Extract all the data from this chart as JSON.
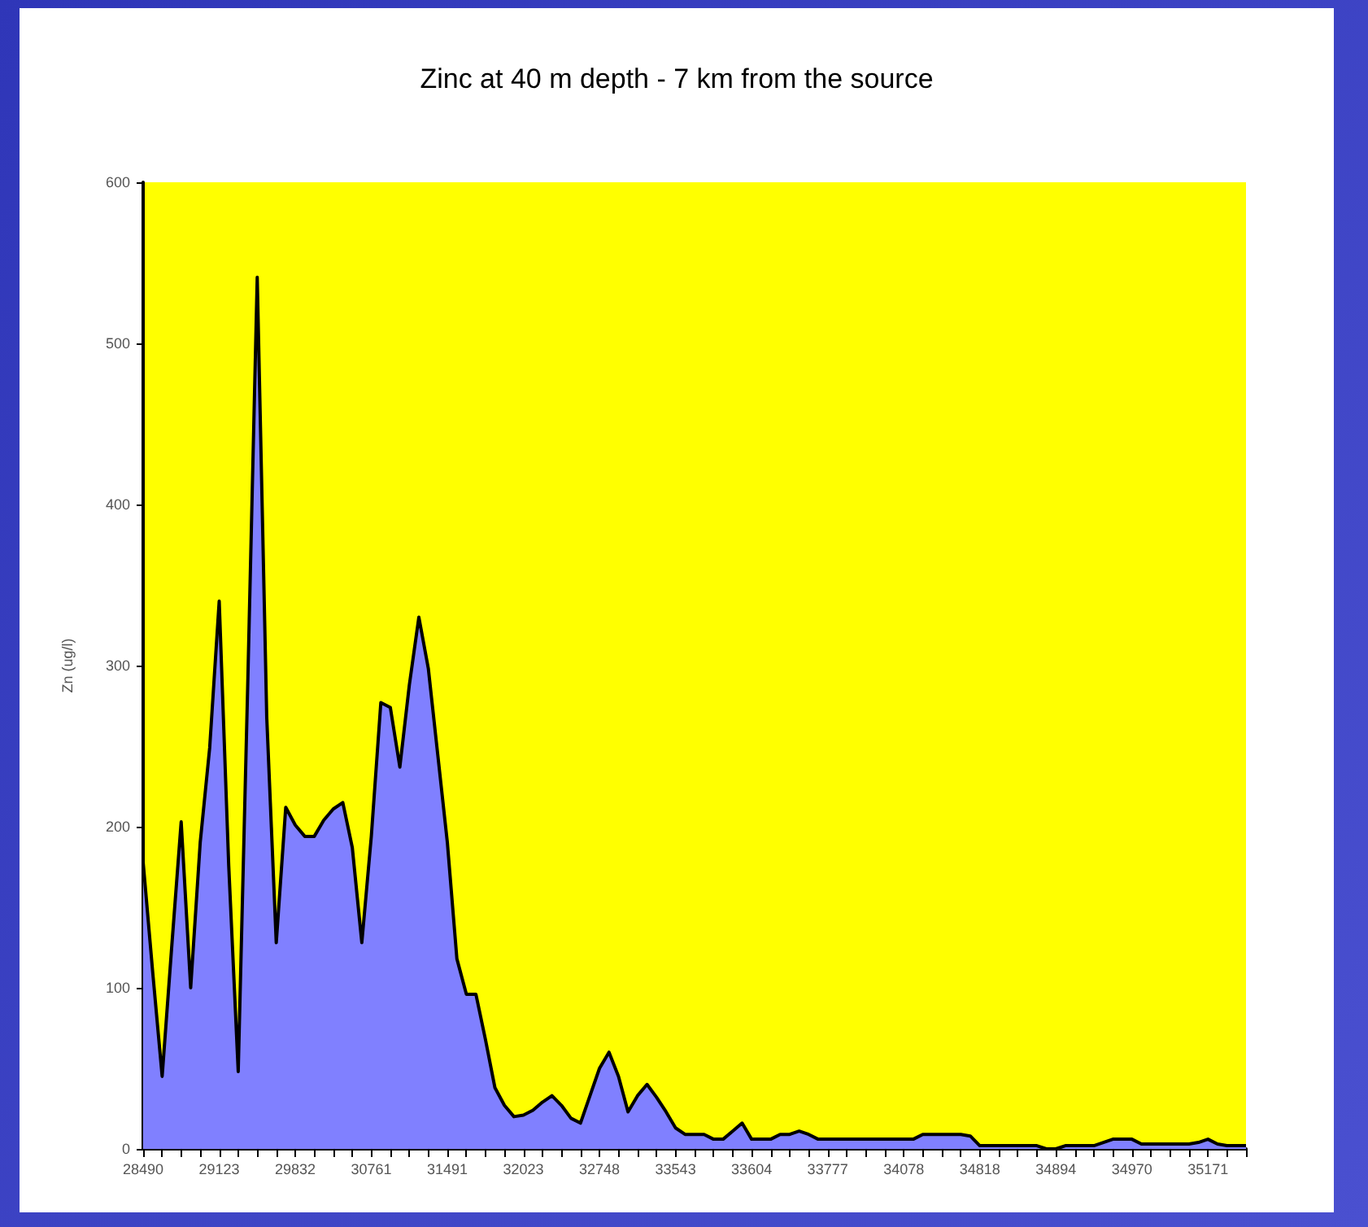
{
  "chart_data": {
    "type": "area",
    "title": "Zinc at 40 m depth - 7 km from the source",
    "ylabel": "Zn (ug/l)",
    "categories": [
      "28490",
      null,
      null,
      null,
      null,
      null,
      null,
      null,
      "29123",
      null,
      null,
      null,
      null,
      null,
      null,
      null,
      "29832",
      null,
      null,
      null,
      null,
      null,
      null,
      null,
      "30761",
      null,
      null,
      null,
      null,
      null,
      null,
      null,
      "31491",
      null,
      null,
      null,
      null,
      null,
      null,
      null,
      "32023",
      null,
      null,
      null,
      null,
      null,
      null,
      null,
      "32748",
      null,
      null,
      null,
      null,
      null,
      null,
      null,
      "33543",
      null,
      null,
      null,
      null,
      null,
      null,
      null,
      "33604",
      null,
      null,
      null,
      null,
      null,
      null,
      null,
      "33777",
      null,
      null,
      null,
      null,
      null,
      null,
      null,
      "34078",
      null,
      null,
      null,
      null,
      null,
      null,
      null,
      "34818",
      null,
      null,
      null,
      null,
      null,
      null,
      null,
      "34894",
      null,
      null,
      null,
      null,
      null,
      null,
      null,
      "34970",
      null,
      null,
      null,
      null,
      null,
      null,
      null,
      "35171",
      null,
      null,
      null,
      null
    ],
    "series": [
      {
        "color": "#8080ff",
        "values": [
          178,
          110,
          45,
          125,
          203,
          100,
          190,
          249,
          340,
          176,
          48,
          288,
          541,
          268,
          128,
          212,
          201,
          194,
          194,
          204,
          211,
          215,
          187,
          128,
          194,
          277,
          274,
          237,
          288,
          330,
          298,
          244,
          190,
          118,
          96,
          96,
          68,
          38,
          27,
          20,
          21,
          24,
          29,
          33,
          27,
          19,
          16,
          33,
          50,
          60,
          45,
          23,
          33,
          40,
          32,
          23,
          13,
          9,
          9,
          9,
          6,
          6,
          11,
          16,
          6,
          6,
          6,
          9,
          9,
          11,
          9,
          6,
          6,
          6,
          6,
          6,
          6,
          6,
          6,
          6,
          6,
          6,
          9,
          9,
          9,
          9,
          9,
          8,
          2,
          2,
          2,
          2,
          2,
          2,
          2,
          0,
          0,
          2,
          2,
          2,
          2,
          4,
          6,
          6,
          6,
          3,
          3,
          3,
          3,
          3,
          3,
          4,
          6,
          3,
          2,
          2,
          2
        ]
      }
    ],
    "ylim": [
      0,
      600
    ],
    "yticks": [
      0,
      100,
      200,
      300,
      400,
      500,
      600
    ]
  }
}
